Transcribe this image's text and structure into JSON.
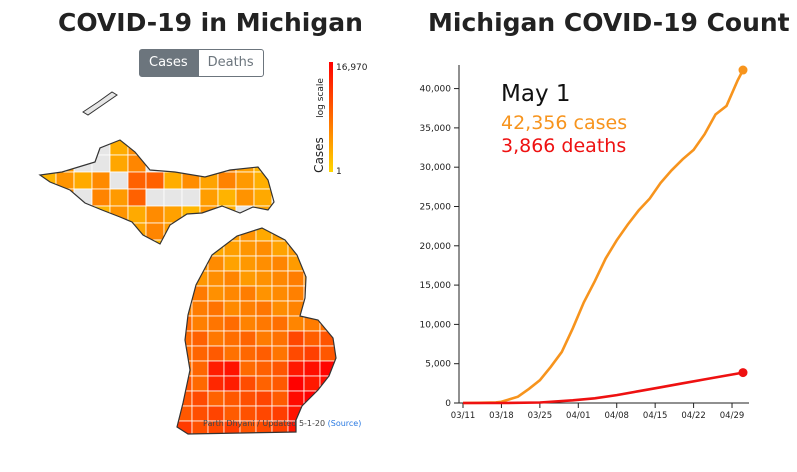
{
  "map": {
    "title": "COVID-19 in Michigan",
    "toggle": {
      "cases_label": "Cases",
      "deaths_label": "Deaths",
      "selected": "Cases"
    },
    "legend": {
      "scale_note": "log scale",
      "title": "Cases",
      "max_label": "16,970",
      "min_label": "1",
      "color_low": "#ffd700",
      "color_high": "#ff0000"
    },
    "credit": {
      "text": "Parth Dhyani / Updated 5-1-20",
      "source_label": "(Source)"
    },
    "colors": {
      "no_data": "#e6e6e6",
      "border": "#333333"
    }
  },
  "chart_data": {
    "type": "line",
    "title": "Michigan COVID-19 Count",
    "x_tick_labels": [
      "03/11",
      "03/18",
      "03/25",
      "04/01",
      "04/08",
      "04/15",
      "04/22",
      "04/29"
    ],
    "x_tick_days": [
      0,
      7,
      14,
      21,
      28,
      35,
      42,
      49
    ],
    "ylim": [
      0,
      43000
    ],
    "y_ticks": [
      0,
      5000,
      10000,
      15000,
      20000,
      25000,
      30000,
      35000,
      40000
    ],
    "y_tick_labels": [
      "0",
      "5,000",
      "10,000",
      "15,000",
      "20,000",
      "25,000",
      "30,000",
      "35,000",
      "40,000"
    ],
    "annotation": {
      "date": "May 1",
      "cases_text": "42,356 cases",
      "deaths_text": "3,866 deaths"
    },
    "series": [
      {
        "key": "cases",
        "color": "#f7941d",
        "x": [
          0,
          3,
          6,
          7,
          10,
          12,
          14,
          16,
          18,
          20,
          22,
          24,
          26,
          28,
          30,
          32,
          34,
          36,
          38,
          40,
          42,
          44,
          46,
          48,
          50,
          51
        ],
        "values": [
          0,
          20,
          80,
          150,
          800,
          1800,
          2900,
          4600,
          6500,
          9500,
          12800,
          15500,
          18400,
          20700,
          22700,
          24500,
          26000,
          28000,
          29600,
          31000,
          32200,
          34200,
          36700,
          37800,
          41000,
          42356
        ]
      },
      {
        "key": "deaths",
        "color": "#ee1111",
        "x": [
          0,
          7,
          14,
          20,
          24,
          28,
          32,
          36,
          40,
          44,
          48,
          51
        ],
        "values": [
          0,
          3,
          60,
          340,
          600,
          1000,
          1500,
          2000,
          2500,
          3000,
          3500,
          3866
        ]
      }
    ]
  }
}
